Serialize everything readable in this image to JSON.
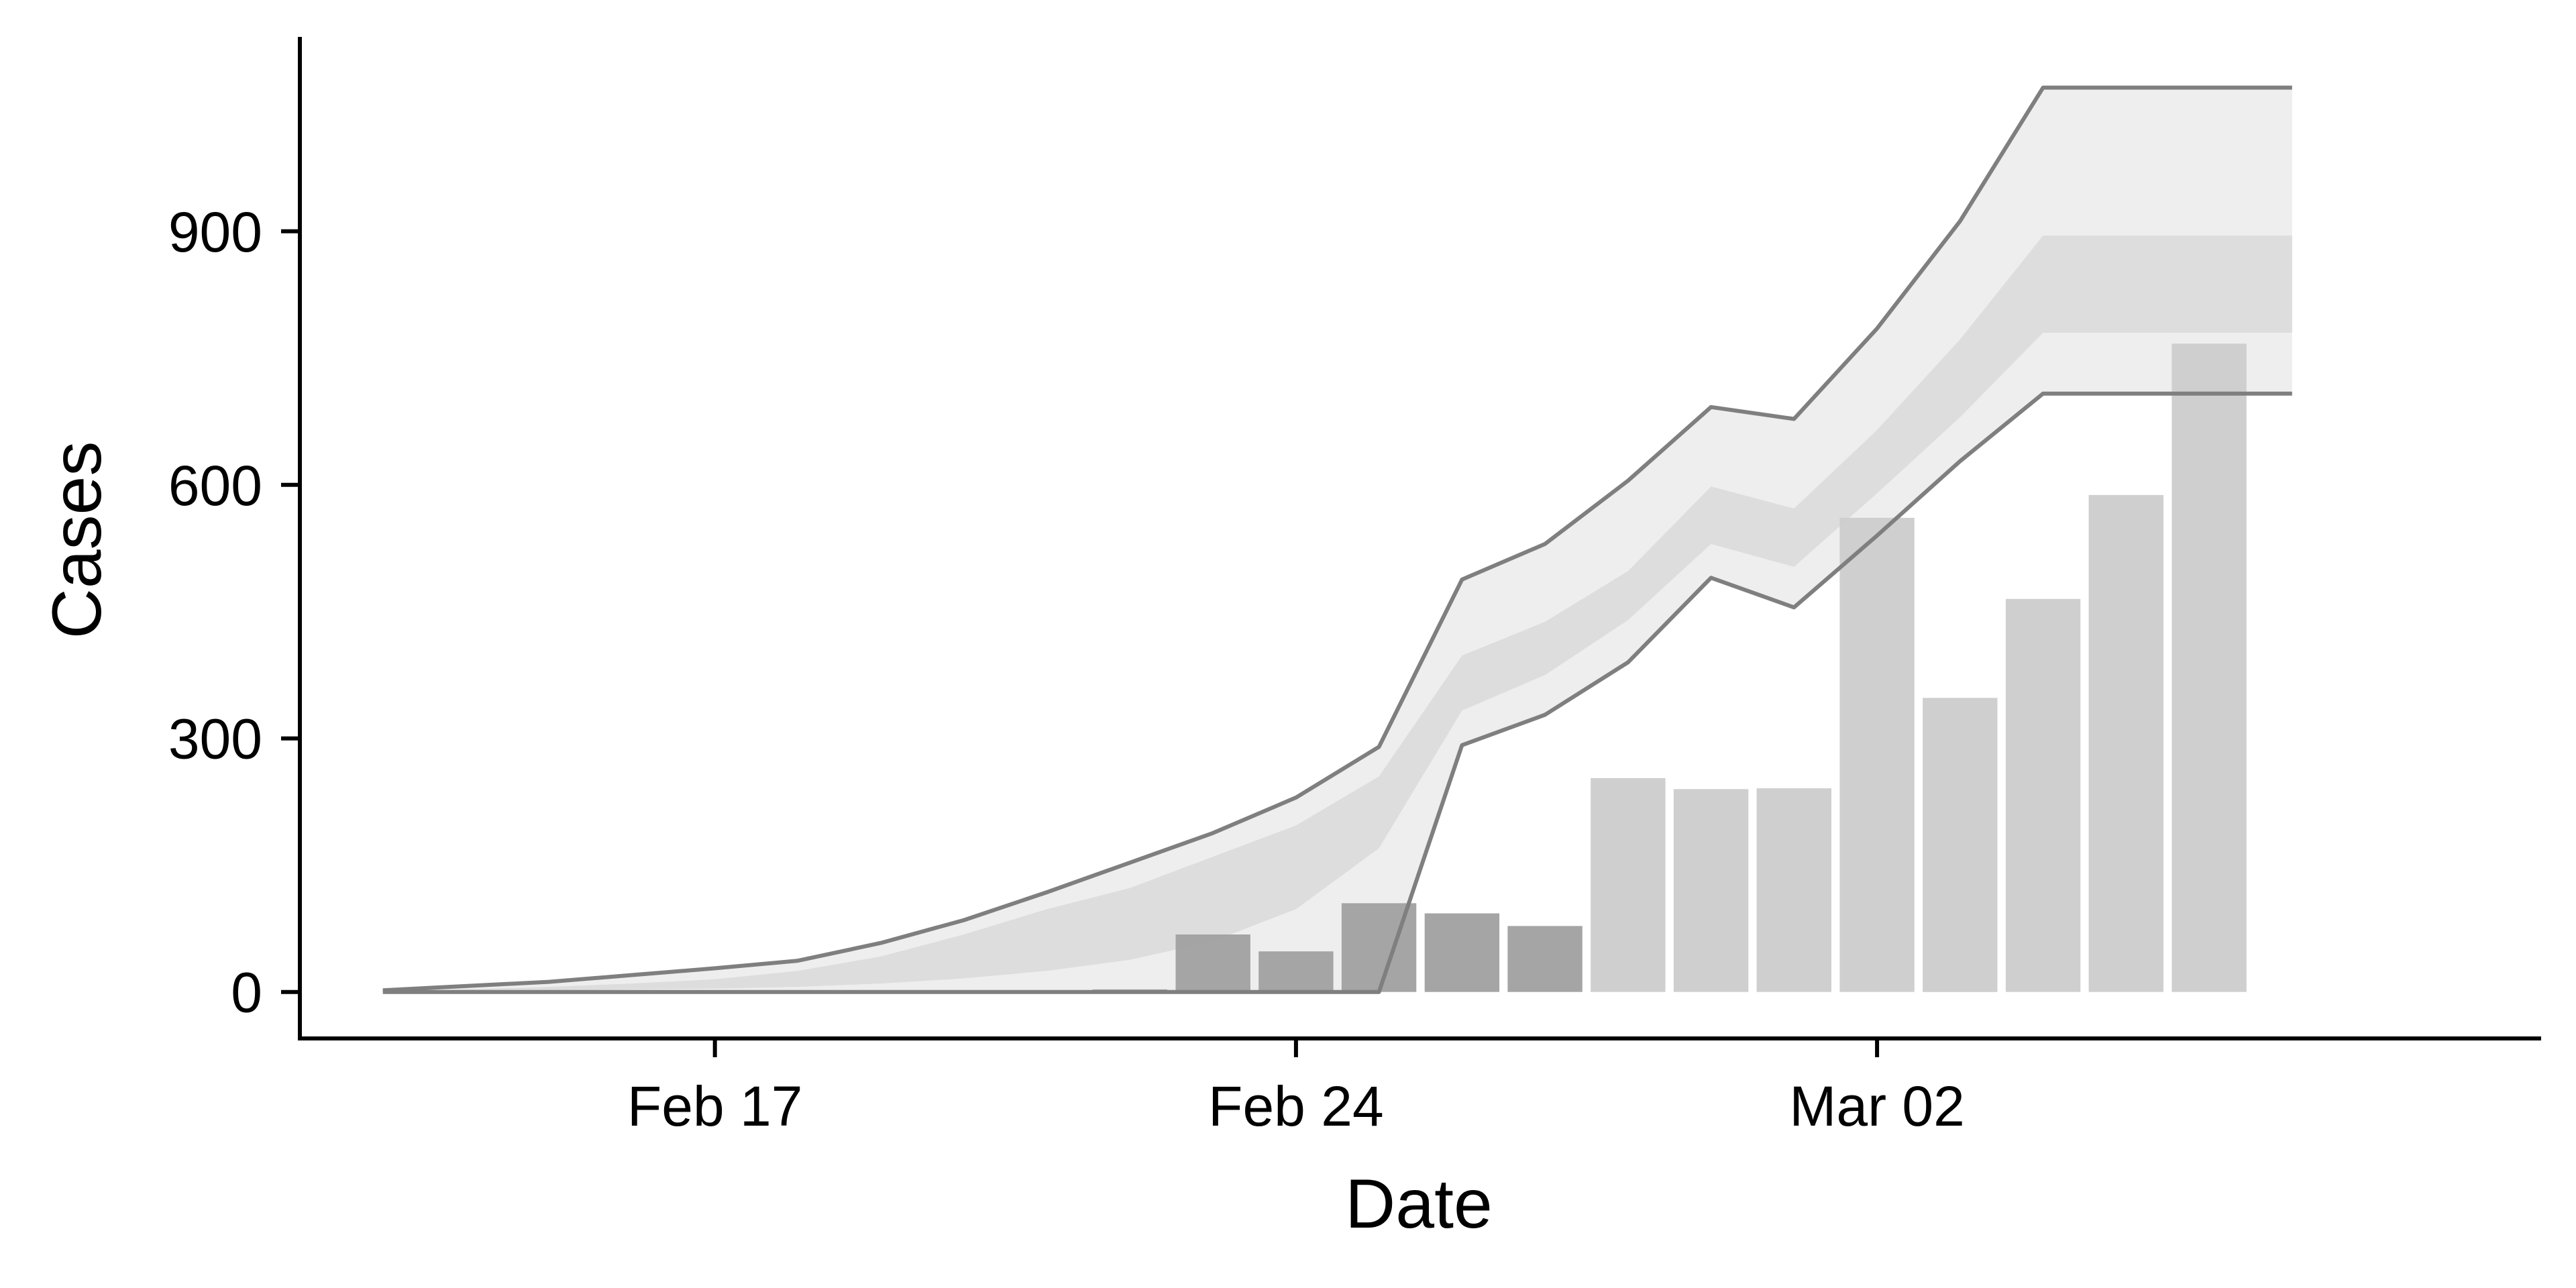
{
  "chart_data": {
    "type": "bar",
    "title": "",
    "xlabel": "Date",
    "ylabel": "Cases",
    "x_type": "date",
    "xlim": [
      "2020-02-12",
      "2020-03-10"
    ],
    "ylim": [
      -55,
      1130
    ],
    "grid": false,
    "legend": "none",
    "x_ticks": [
      {
        "date": "2020-02-17",
        "label": "Feb 17"
      },
      {
        "date": "2020-02-24",
        "label": "Feb 24"
      },
      {
        "date": "2020-03-02",
        "label": "Mar 02"
      }
    ],
    "y_ticks": [
      {
        "value": 0,
        "label": "0"
      },
      {
        "value": 300,
        "label": "300"
      },
      {
        "value": 600,
        "label": "600"
      },
      {
        "value": 900,
        "label": "900"
      }
    ],
    "bars": {
      "dates": [
        "2020-02-15",
        "2020-02-16",
        "2020-02-17",
        "2020-02-18",
        "2020-02-19",
        "2020-02-20",
        "2020-02-21",
        "2020-02-22",
        "2020-02-23",
        "2020-02-24",
        "2020-02-25",
        "2020-02-26",
        "2020-02-27",
        "2020-02-28",
        "2020-02-29",
        "2020-03-01",
        "2020-03-02",
        "2020-03-03",
        "2020-03-04",
        "2020-03-05",
        "2020-03-06"
      ],
      "values": [
        0,
        0,
        0,
        0,
        0,
        0,
        0,
        3,
        68,
        48,
        105,
        93,
        78,
        253,
        240,
        241,
        561,
        348,
        465,
        588,
        767
      ],
      "colors": [
        "#a0a0a0",
        "#a0a0a0",
        "#a0a0a0",
        "#a0a0a0",
        "#a0a0a0",
        "#a0a0a0",
        "#a0a0a0",
        "#a0a0a0",
        "#a0a0a0",
        "#a0a0a0",
        "#a0a0a0",
        "#a0a0a0",
        "#a0a0a0",
        "#cccccc",
        "#cccccc",
        "#cccccc",
        "#cccccc",
        "#cccccc",
        "#cccccc",
        "#cccccc",
        "#cccccc"
      ]
    },
    "series": [
      {
        "dates": [
          "2020-02-13",
          "2020-02-14",
          "2020-02-15",
          "2020-02-16",
          "2020-02-17",
          "2020-02-18",
          "2020-02-19",
          "2020-02-20",
          "2020-02-21",
          "2020-02-22",
          "2020-02-23",
          "2020-02-24",
          "2020-02-25",
          "2020-02-26",
          "2020-02-27",
          "2020-02-28",
          "2020-02-29",
          "2020-03-01",
          "2020-03-02",
          "2020-03-03",
          "2020-03-04",
          "2020-03-05",
          "2020-03-06",
          "2020-03-07"
        ],
        "upper": [
          2,
          7,
          12,
          20,
          28,
          37,
          58,
          85,
          118,
          153,
          188,
          230,
          290,
          488,
          530,
          605,
          692,
          678,
          785,
          912,
          1070,
          1070,
          1070,
          1070
        ],
        "upper_50": [
          1,
          3,
          6,
          10,
          15,
          25,
          42,
          68,
          98,
          123,
          160,
          197,
          255,
          398,
          438,
          498,
          598,
          572,
          665,
          772,
          895,
          895,
          895,
          895
        ],
        "lower_50": [
          0,
          1,
          2,
          3,
          4,
          6,
          10,
          16,
          25,
          38,
          60,
          98,
          170,
          333,
          375,
          440,
          530,
          503,
          590,
          680,
          780,
          780,
          780,
          780
        ],
        "lower": [
          0,
          0,
          0,
          0,
          0,
          0,
          0,
          0,
          0,
          0,
          0,
          0,
          0,
          292,
          328,
          390,
          490,
          455,
          540,
          628,
          708,
          708,
          708,
          708
        ]
      }
    ],
    "colors": {
      "band_outer_fill": "#e8e8e8",
      "band_inner_fill": "#cfcfcf",
      "line_dark": "#7f7f7f",
      "line_light": "#b0b0b0",
      "axis": "#000000"
    }
  }
}
